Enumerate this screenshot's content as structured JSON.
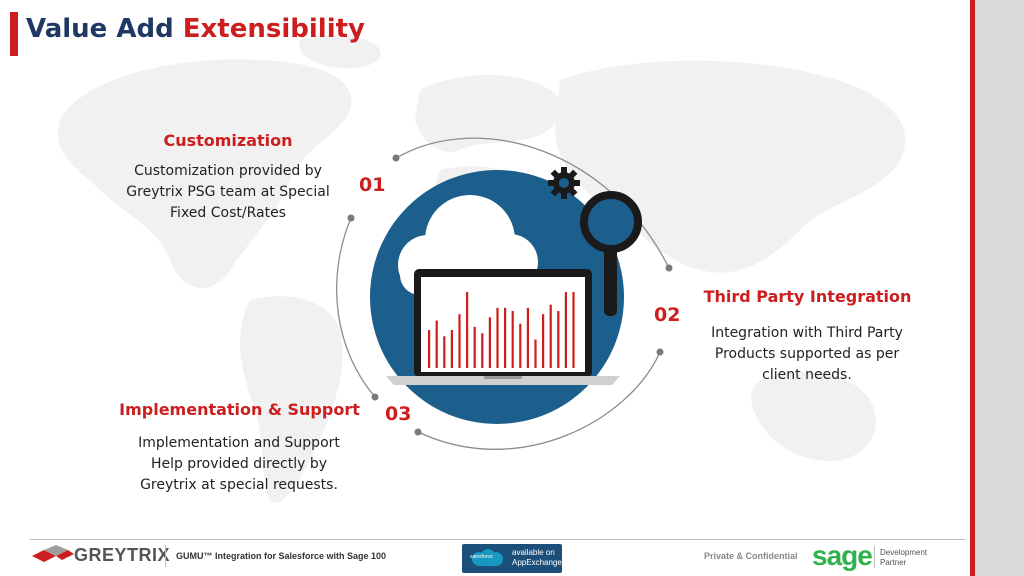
{
  "title": {
    "part1": "Value Add",
    "part2": "Extensibility"
  },
  "items": [
    {
      "number": "01",
      "heading": "Customization",
      "lines": [
        "Customization provided by",
        "Greytrix PSG team at Special",
        "Fixed Cost/Rates"
      ]
    },
    {
      "number": "02",
      "heading": "Third Party Integration",
      "lines": [
        "Integration with Third Party",
        "Products supported as per",
        "client needs."
      ]
    },
    {
      "number": "03",
      "heading": "Implementation & Support",
      "lines": [
        "Implementation and Support",
        "Help provided directly by",
        "Greytrix at special requests."
      ]
    }
  ],
  "footer": {
    "logo_text": "GREYTRIX",
    "product_text": "GUMU™ Integration for Salesforce with Sage 100",
    "appexchange_line1": "available on",
    "appexchange_line2": "AppExchange",
    "appexchange_brand": "salesforce",
    "confidential_text": "Private & Confidential",
    "sage_logo": "sage",
    "sage_line1": "Development",
    "sage_line2": "Partner"
  },
  "colors": {
    "accent_red": "#cc1e1e",
    "navy": "#1f3864",
    "circle_blue": "#1c5f8c",
    "sage_green": "#2fb24c"
  },
  "chart_values": [
    12,
    15,
    10,
    12,
    17,
    24,
    13,
    11,
    16,
    19,
    19,
    18,
    14,
    19,
    9,
    17,
    20,
    18,
    24,
    24
  ]
}
